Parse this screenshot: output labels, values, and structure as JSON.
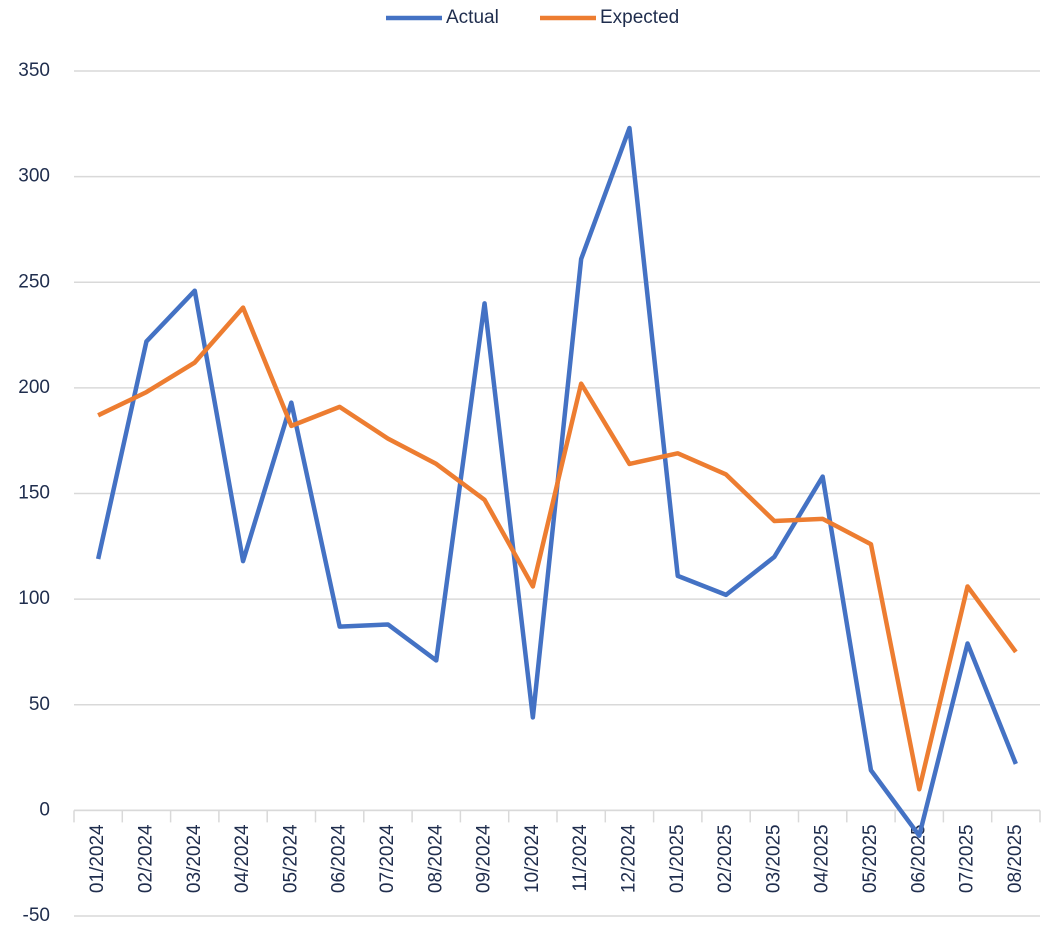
{
  "chart_data": {
    "type": "line",
    "categories": [
      "01/2024",
      "02/2024",
      "03/2024",
      "04/2024",
      "05/2024",
      "06/2024",
      "07/2024",
      "08/2024",
      "09/2024",
      "10/2024",
      "11/2024",
      "12/2024",
      "01/2025",
      "02/2025",
      "03/2025",
      "04/2025",
      "05/2025",
      "06/2025",
      "07/2025",
      "08/2025"
    ],
    "series": [
      {
        "name": "Actual",
        "color": "#4472c4",
        "values": [
          119,
          222,
          246,
          118,
          193,
          87,
          88,
          71,
          240,
          44,
          261,
          323,
          111,
          102,
          120,
          158,
          19,
          -12,
          79,
          22
        ]
      },
      {
        "name": "Expected",
        "color": "#ed7d31",
        "values": [
          187,
          198,
          212,
          238,
          182,
          191,
          176,
          164,
          147,
          106,
          202,
          164,
          169,
          159,
          137,
          138,
          126,
          10,
          106,
          75
        ]
      }
    ],
    "ylim": [
      -50,
      350
    ],
    "yticks": [
      -50,
      0,
      50,
      100,
      150,
      200,
      250,
      300,
      350
    ],
    "grid": true,
    "legend": "top"
  }
}
